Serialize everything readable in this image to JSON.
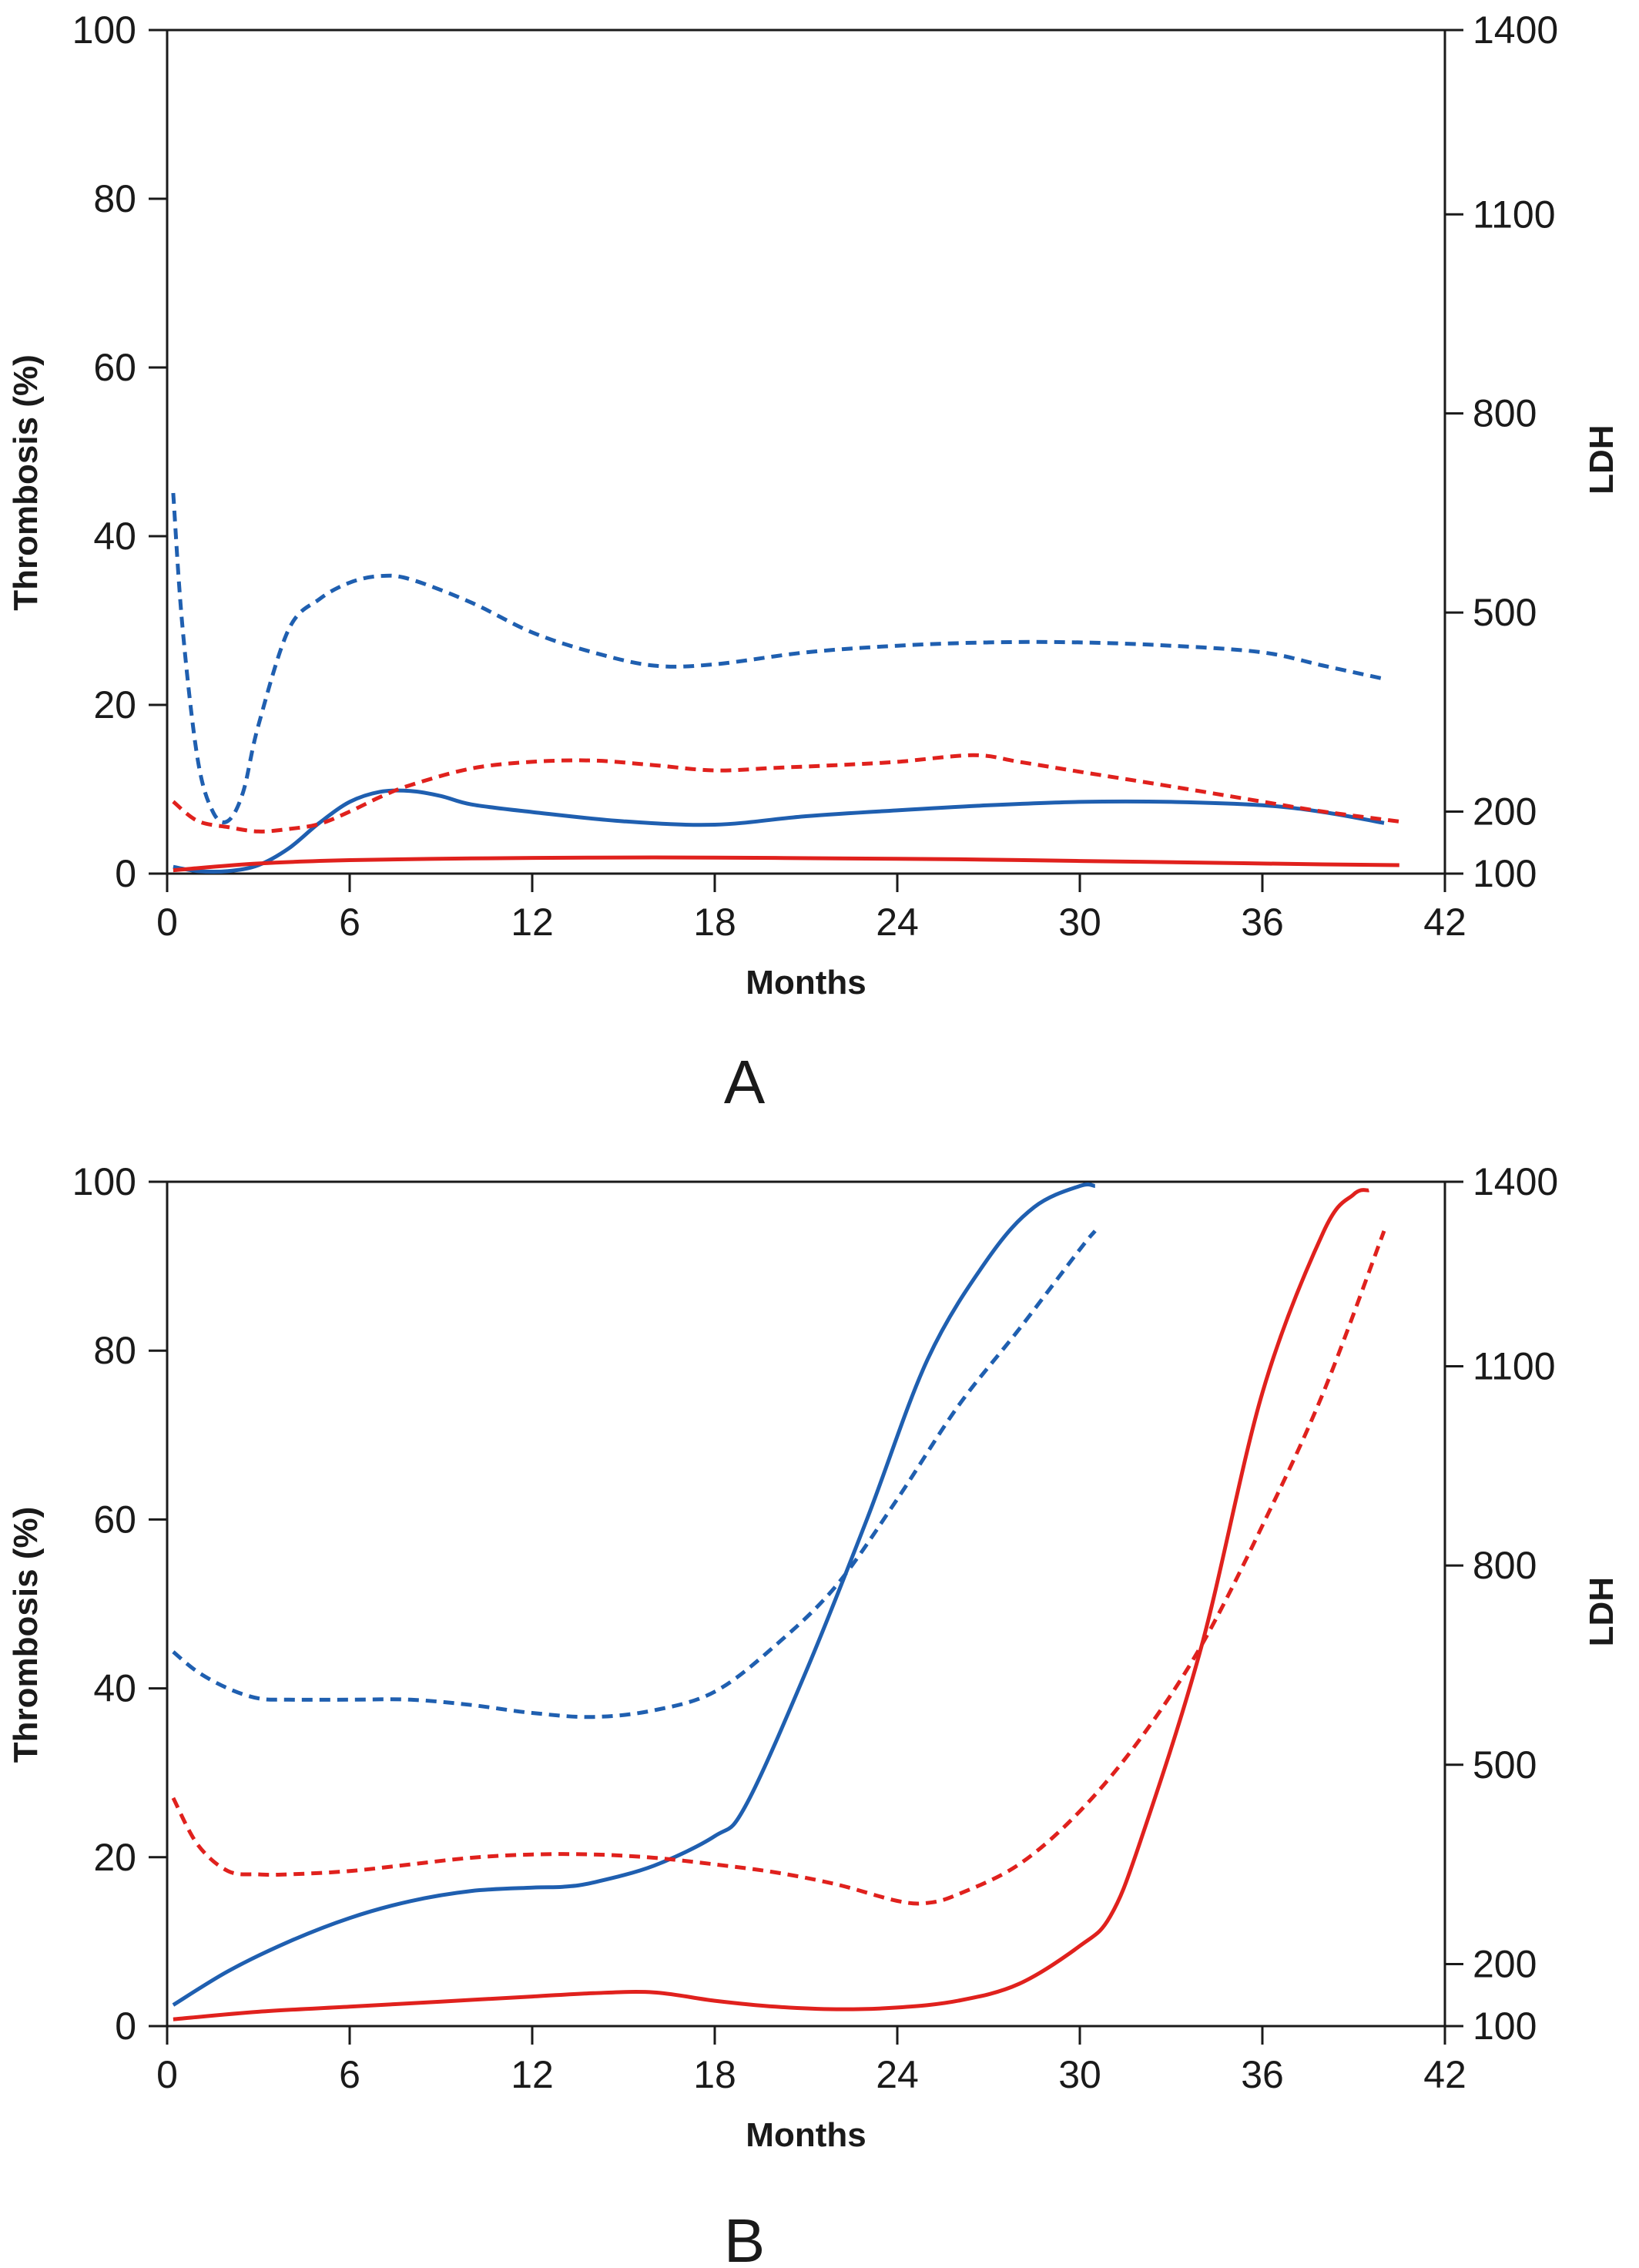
{
  "chart_data": [
    {
      "type": "line",
      "panel_label": "A",
      "xlabel": "Months",
      "ylabel_left": "Thrombosis (%)",
      "ylabel_right": "LDH",
      "xlim": [
        0,
        42
      ],
      "ylim_left": [
        0,
        100
      ],
      "ylim_right": [
        100,
        1400
      ],
      "x_ticks": [
        "0",
        "6",
        "12",
        "18",
        "24",
        "30",
        "36",
        "42"
      ],
      "y_ticks_left": [
        "0",
        "20",
        "40",
        "60",
        "80",
        "100"
      ],
      "y_ticks_right": [
        "100",
        "200",
        "500",
        "800",
        "1100",
        "1400"
      ],
      "grid": false,
      "legend": "none",
      "series": [
        {
          "color": "#1f5fb0",
          "style": "dashed",
          "axis": "right",
          "x": [
            0.2,
            0.5,
            1,
            1.5,
            2,
            2.5,
            3,
            4,
            5,
            6,
            7,
            8,
            10,
            12,
            14,
            16,
            18,
            21,
            24,
            27,
            30,
            33,
            36,
            38,
            40
          ],
          "y": [
            680,
            480,
            280,
            200,
            185,
            230,
            330,
            475,
            520,
            545,
            555,
            550,
            515,
            470,
            440,
            420,
            422,
            440,
            450,
            455,
            455,
            450,
            440,
            420,
            400
          ]
        },
        {
          "color": "#1f5fb0",
          "style": "solid",
          "axis": "left",
          "x": [
            0.2,
            1,
            2,
            3,
            4,
            5,
            6,
            7,
            8,
            9,
            10,
            12,
            15,
            18,
            21,
            24,
            27,
            30,
            33,
            36,
            38,
            40
          ],
          "y": [
            0.8,
            0.3,
            0.3,
            1,
            3,
            6,
            8.5,
            9.7,
            9.8,
            9.2,
            8.2,
            7.3,
            6.2,
            5.8,
            6.8,
            7.5,
            8.1,
            8.5,
            8.5,
            8.1,
            7.3,
            6.0
          ]
        },
        {
          "color": "#e0211d",
          "style": "dashed",
          "axis": "right",
          "x": [
            0.2,
            1,
            2,
            3,
            4,
            5,
            6,
            7,
            8,
            10,
            12,
            14,
            16,
            18,
            20,
            22,
            24,
            26.5,
            28,
            30,
            33,
            36,
            38,
            40.5
          ],
          "y": [
            215,
            185,
            175,
            168,
            172,
            180,
            200,
            222,
            240,
            265,
            275,
            277,
            270,
            262,
            266,
            270,
            275,
            285,
            275,
            260,
            238,
            215,
            200,
            184
          ]
        },
        {
          "color": "#e0211d",
          "style": "solid",
          "axis": "left",
          "x": [
            0.2,
            3,
            6,
            10,
            14,
            18,
            22,
            26,
            30,
            34,
            38,
            40.5
          ],
          "y": [
            0.4,
            1.2,
            1.6,
            1.8,
            1.9,
            1.9,
            1.8,
            1.7,
            1.5,
            1.3,
            1.1,
            1.0
          ]
        }
      ]
    },
    {
      "type": "line",
      "panel_label": "B",
      "xlabel": "Months",
      "ylabel_left": "Thrombosis (%)",
      "ylabel_right": "LDH",
      "xlim": [
        0,
        42
      ],
      "ylim_left": [
        0,
        100
      ],
      "ylim_right": [
        100,
        1400
      ],
      "x_ticks": [
        "0",
        "6",
        "12",
        "18",
        "24",
        "30",
        "36",
        "42"
      ],
      "y_ticks_left": [
        "0",
        "20",
        "40",
        "60",
        "80",
        "100"
      ],
      "y_ticks_right": [
        "100",
        "200",
        "500",
        "800",
        "1100",
        "1400"
      ],
      "grid": false,
      "legend": "none",
      "series": [
        {
          "color": "#1f5fb0",
          "style": "dashed",
          "axis": "right",
          "x": [
            0.2,
            1,
            2,
            3,
            4,
            6,
            8,
            10,
            12,
            14,
            16,
            18,
            20,
            22,
            24,
            26,
            28,
            30,
            30.5
          ],
          "y": [
            670,
            640,
            615,
            600,
            598,
            598,
            598,
            590,
            578,
            572,
            582,
            610,
            680,
            770,
            900,
            1040,
            1160,
            1290,
            1320
          ]
        },
        {
          "color": "#1f5fb0",
          "style": "solid",
          "axis": "left",
          "x": [
            0.2,
            2,
            4,
            6,
            8,
            10,
            12,
            13,
            14,
            16,
            18,
            19,
            21,
            23,
            25,
            27,
            28.5,
            30,
            30.5
          ],
          "y": [
            2.5,
            6.5,
            10,
            12.8,
            14.8,
            16,
            16.4,
            16.5,
            17,
            19,
            22.5,
            26,
            42,
            60,
            79,
            91,
            97,
            99.5,
            99.5
          ]
        },
        {
          "color": "#e0211d",
          "style": "dashed",
          "axis": "right",
          "x": [
            0.2,
            1,
            2,
            3,
            4,
            6,
            8,
            10,
            12,
            14,
            16,
            18,
            20,
            22,
            24,
            25,
            26,
            28,
            30,
            32,
            34,
            36,
            38,
            40
          ],
          "y": [
            450,
            380,
            340,
            335,
            335,
            340,
            350,
            360,
            365,
            365,
            360,
            350,
            338,
            320,
            295,
            292,
            305,
            350,
            430,
            540,
            680,
            860,
            1060,
            1320
          ]
        },
        {
          "color": "#e0211d",
          "style": "solid",
          "axis": "left",
          "x": [
            0.2,
            3,
            6,
            9,
            12,
            14,
            16,
            18,
            20,
            22,
            24,
            26,
            28,
            30,
            31,
            32,
            34,
            36,
            38,
            39,
            39.5
          ],
          "y": [
            0.8,
            1.7,
            2.3,
            2.9,
            3.5,
            3.9,
            4.0,
            3.0,
            2.3,
            2.0,
            2.2,
            3.0,
            5.0,
            9.5,
            13,
            22,
            45,
            75,
            94,
            98.5,
            99
          ]
        }
      ]
    }
  ]
}
